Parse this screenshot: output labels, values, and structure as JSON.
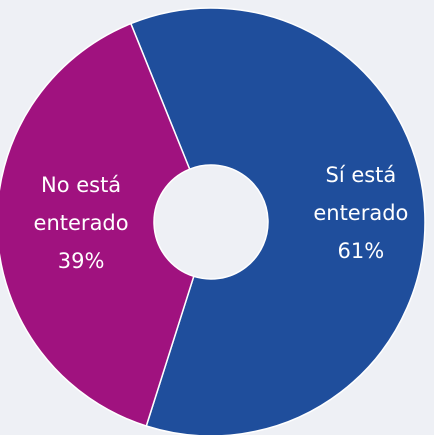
{
  "chart_data": {
    "type": "donut",
    "categories": [
      "Sí está enterado",
      "No está enterado"
    ],
    "values": [
      61,
      39
    ],
    "value_labels": [
      "61%",
      "39%"
    ],
    "colors": [
      "#1f4e9c",
      "#a0127f"
    ]
  }
}
